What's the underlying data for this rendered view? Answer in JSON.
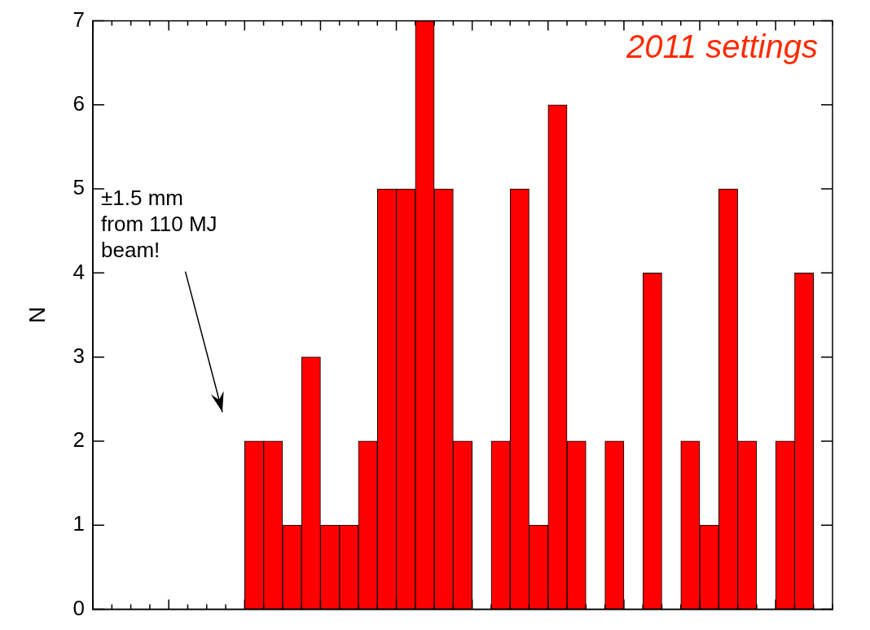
{
  "chart_data": {
    "type": "bar",
    "categories": [
      null,
      null,
      null,
      null,
      null,
      null,
      null,
      null,
      null,
      null,
      null,
      null,
      null,
      null,
      null,
      null,
      null,
      null,
      null,
      null,
      null,
      null,
      null,
      null,
      null,
      null,
      null,
      null,
      null,
      null,
      null,
      null,
      null,
      null,
      null,
      null,
      null,
      null,
      null
    ],
    "values": [
      0,
      0,
      0,
      0,
      0,
      0,
      0,
      0,
      2,
      2,
      1,
      3,
      1,
      1,
      2,
      5,
      5,
      7,
      5,
      2,
      0,
      2,
      5,
      1,
      6,
      2,
      0,
      2,
      0,
      4,
      0,
      2,
      1,
      5,
      2,
      0,
      2,
      4,
      0
    ],
    "color": "#ff0000",
    "ylabel": "N",
    "ylim": [
      0,
      7
    ],
    "yticks": [
      0,
      1,
      2,
      3,
      4,
      5,
      6,
      7
    ],
    "grid": false,
    "tick_labels": "y",
    "annotations": [
      {
        "text": [
          "2011 settings"
        ],
        "color": "#ff2a00"
      },
      {
        "text": [
          "±1.5 mm",
          "from 110 MJ",
          "beam!"
        ],
        "color": "#000000"
      }
    ]
  }
}
